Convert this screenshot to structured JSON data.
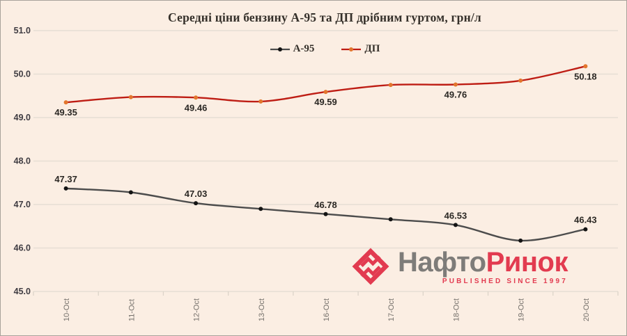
{
  "app": {
    "background": "#FBEEE3",
    "border_color": "#A8A29B",
    "gridline_color": "#E6DED4",
    "tick_color": "#DCD4C9"
  },
  "chart_data": {
    "type": "line",
    "title": "Середні ціни бензину А-95 та ДП дрібним гуртом, грн/л",
    "categories": [
      "10-Oct",
      "11-Oct",
      "12-Oct",
      "13-Oct",
      "16-Oct",
      "17-Oct",
      "18-Oct",
      "19-Oct",
      "20-Oct"
    ],
    "y_ticks": [
      "51.0",
      "50.0",
      "49.0",
      "48.0",
      "47.0",
      "46.0",
      "45.0"
    ],
    "ylim": [
      45.0,
      51.0
    ],
    "grid": true,
    "legend_position": "top-center",
    "axis_text_color": "#3F3C42",
    "x_axis_text_color": "#74706B",
    "data_label_color": "#2B2824",
    "series": [
      {
        "name": "А-95",
        "color": "#4C4C4C",
        "marker_color": "#141414",
        "values": [
          47.37,
          47.28,
          47.03,
          46.9,
          46.78,
          46.66,
          46.53,
          46.17,
          46.43
        ],
        "labels": [
          "47.37",
          null,
          "47.03",
          null,
          "46.78",
          null,
          "46.53",
          null,
          "46.43"
        ],
        "label_side": "above"
      },
      {
        "name": "ДП",
        "color": "#BE1D14",
        "marker_color": "#E2762D",
        "values": [
          49.35,
          49.47,
          49.46,
          49.37,
          49.59,
          49.75,
          49.76,
          49.85,
          50.18
        ],
        "labels": [
          "49.35",
          null,
          "49.46",
          null,
          "49.59",
          null,
          "49.76",
          null,
          "50.18"
        ],
        "label_side": "below"
      }
    ]
  },
  "logo": {
    "text_gray": "Нафто",
    "text_red": "Ринок",
    "tagline": "PUBLISHED SINCE 1997",
    "gray_color": "#7E7C79",
    "red_color": "#E23B50"
  }
}
